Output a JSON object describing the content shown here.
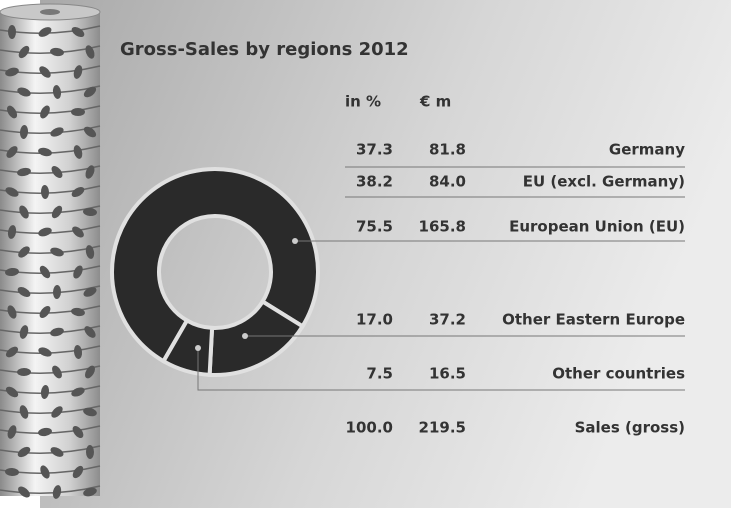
{
  "chart_data": {
    "type": "donut",
    "title": "Gross-Sales by regions 2012",
    "categories": [
      "Germany",
      "EU (excl. Germany)",
      "European Union (EU)",
      "Other Eastern Europe",
      "Other countries",
      "Sales (gross)"
    ],
    "series": [
      {
        "name": "in %",
        "color": "#2a2a2a",
        "values": [
          37.3,
          38.2,
          75.5,
          17.0,
          7.5,
          100.0
        ],
        "value_labels": [
          "37.3",
          "38.2",
          "75.5",
          "17.0",
          "7.5",
          "100.0"
        ]
      },
      {
        "name": "€ m",
        "values": [
          81.8,
          84.0,
          165.8,
          37.2,
          16.5,
          219.5
        ],
        "value_labels": [
          "81.8",
          "84.0",
          "165.8",
          "37.2",
          "16.5",
          "219.5"
        ]
      }
    ]
  }
}
